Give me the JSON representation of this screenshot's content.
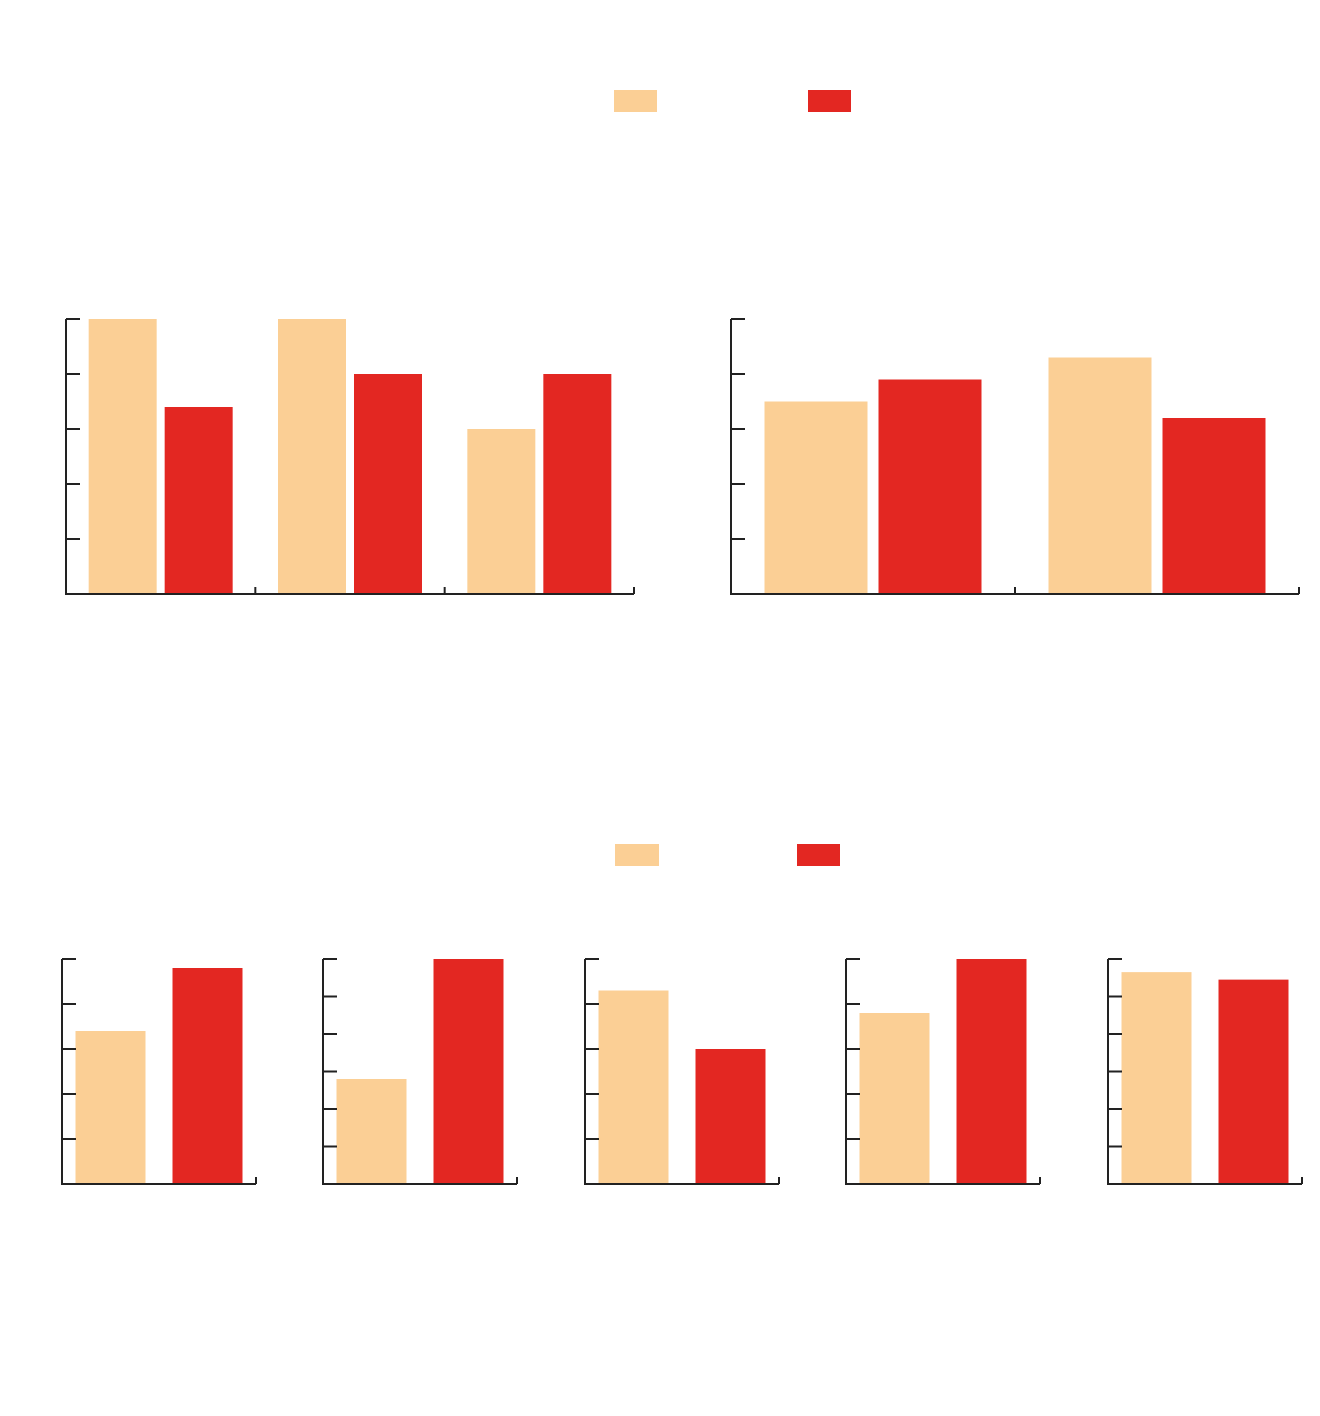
{
  "colors": {
    "series_a": "#FBCF95",
    "series_b": "#E32722",
    "axis": "#222222"
  },
  "chart_data": [
    {
      "type": "bar",
      "group": "top",
      "ylim": [
        0,
        5
      ],
      "yticks": [
        0,
        1,
        2,
        3,
        4,
        5
      ],
      "grid": false,
      "legend": "top-center",
      "series": [
        {
          "values": [
            5,
            5,
            3
          ]
        },
        {
          "values": [
            3.4,
            4,
            4
          ]
        }
      ]
    },
    {
      "type": "bar",
      "group": "top",
      "ylim": [
        0,
        5
      ],
      "yticks": [
        0,
        1,
        2,
        3,
        4,
        5
      ],
      "grid": false,
      "legend": "top-center",
      "series": [
        {
          "values": [
            3.5,
            4.3
          ]
        },
        {
          "values": [
            3.9,
            3.2
          ]
        }
      ]
    },
    {
      "type": "bar",
      "group": "bottom",
      "ylim": [
        0,
        5
      ],
      "yticks": [
        0,
        1,
        2,
        3,
        4,
        5
      ],
      "grid": false,
      "legend": "top-center",
      "series": [
        {
          "values": [
            3.4
          ]
        },
        {
          "values": [
            4.8
          ]
        }
      ]
    },
    {
      "type": "bar",
      "group": "bottom",
      "ylim": [
        0,
        6
      ],
      "yticks": [
        0,
        1,
        2,
        3,
        4,
        5,
        6
      ],
      "grid": false,
      "legend": "top-center",
      "series": [
        {
          "values": [
            2.8
          ]
        },
        {
          "values": [
            6
          ]
        }
      ]
    },
    {
      "type": "bar",
      "group": "bottom",
      "ylim": [
        0,
        5
      ],
      "yticks": [
        0,
        1,
        2,
        3,
        4,
        5
      ],
      "grid": false,
      "legend": "top-center",
      "series": [
        {
          "values": [
            4.3
          ]
        },
        {
          "values": [
            3
          ]
        }
      ]
    },
    {
      "type": "bar",
      "group": "bottom",
      "ylim": [
        0,
        5
      ],
      "yticks": [
        0,
        1,
        2,
        3,
        4,
        5
      ],
      "grid": false,
      "legend": "top-center",
      "series": [
        {
          "values": [
            3.8
          ]
        },
        {
          "values": [
            5
          ]
        }
      ]
    },
    {
      "type": "bar",
      "group": "bottom",
      "ylim": [
        0,
        6
      ],
      "yticks": [
        0,
        1,
        2,
        3,
        4,
        5,
        6
      ],
      "grid": false,
      "legend": "top-center",
      "series": [
        {
          "values": [
            5.65
          ]
        },
        {
          "values": [
            5.45
          ]
        }
      ]
    }
  ]
}
